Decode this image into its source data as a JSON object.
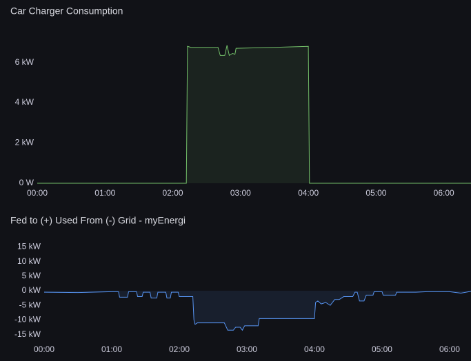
{
  "chart_data": [
    {
      "type": "line",
      "title": "Car Charger Consumption",
      "x": [
        "00:00",
        "02:12",
        "02:13",
        "02:16",
        "02:40",
        "02:42",
        "02:46",
        "02:48",
        "02:50",
        "02:53",
        "02:55",
        "02:56",
        "03:30",
        "04:00",
        "04:01",
        "06:24"
      ],
      "values": [
        0,
        0,
        6.8,
        6.75,
        6.75,
        6.35,
        6.35,
        6.85,
        6.35,
        6.45,
        6.4,
        6.7,
        6.75,
        6.8,
        0,
        0
      ],
      "color": "#73bf69",
      "xlim": [
        "00:00",
        "06:24"
      ],
      "xticks": [
        "00:00",
        "01:00",
        "02:00",
        "03:00",
        "04:00",
        "05:00",
        "06:00"
      ],
      "ylim": [
        0,
        7.8
      ],
      "yticks": [
        {
          "value": 0,
          "label": "0 W"
        },
        {
          "value": 2,
          "label": "2 kW"
        },
        {
          "value": 4,
          "label": "4 kW"
        },
        {
          "value": 6,
          "label": "6 kW"
        }
      ],
      "grid": false
    },
    {
      "type": "line",
      "title": "Fed to (+) Used From (-) Grid - myEnergi",
      "x": [
        "00:00",
        "00:30",
        "01:00",
        "01:06",
        "01:07",
        "01:14",
        "01:15",
        "01:22",
        "01:23",
        "01:27",
        "01:28",
        "01:34",
        "01:35",
        "01:40",
        "01:41",
        "01:48",
        "01:49",
        "01:52",
        "01:53",
        "01:59",
        "02:00",
        "02:12",
        "02:13",
        "02:14",
        "02:16",
        "02:40",
        "02:43",
        "02:48",
        "02:50",
        "02:54",
        "02:56",
        "02:58",
        "03:10",
        "03:11",
        "04:00",
        "04:01",
        "04:03",
        "04:06",
        "04:10",
        "04:14",
        "04:18",
        "04:22",
        "04:26",
        "04:34",
        "04:36",
        "04:38",
        "04:40",
        "04:44",
        "04:46",
        "04:52",
        "04:53",
        "05:00",
        "05:01",
        "05:12",
        "05:13",
        "05:30",
        "05:40",
        "06:00",
        "06:10",
        "06:19"
      ],
      "values": [
        -0.5,
        -0.6,
        -0.3,
        -0.3,
        -2.2,
        -2.2,
        -0.3,
        -0.3,
        -2,
        -2,
        -0.5,
        -0.5,
        -2.5,
        -2.5,
        -0.5,
        -0.5,
        -2.5,
        -2.5,
        -0.5,
        -0.5,
        -2,
        -2,
        -10,
        -11.5,
        -11,
        -11,
        -13.5,
        -13.5,
        -12.5,
        -12.5,
        -13.5,
        -12,
        -12,
        -9.5,
        -9.5,
        -4,
        -3.5,
        -4.5,
        -4,
        -5,
        -3,
        -3,
        -2,
        -2,
        -0.5,
        -0.5,
        -3.5,
        -3.5,
        -1.5,
        -1.5,
        -0.3,
        -0.3,
        -1.5,
        -1.5,
        -0.5,
        -0.5,
        -0.3,
        -0.3,
        -0.8,
        -0.2
      ],
      "color": "#5794f2",
      "xlim": [
        "00:00",
        "06:19"
      ],
      "xticks": [
        "00:00",
        "01:00",
        "02:00",
        "03:00",
        "04:00",
        "05:00",
        "06:00"
      ],
      "ylim": [
        -16.5,
        17
      ],
      "yticks": [
        {
          "value": -15,
          "label": "-15 kW"
        },
        {
          "value": -10,
          "label": "-10 kW"
        },
        {
          "value": -5,
          "label": "-5 kW"
        },
        {
          "value": 0,
          "label": "0 kW"
        },
        {
          "value": 5,
          "label": "5 kW"
        },
        {
          "value": 10,
          "label": "10 kW"
        },
        {
          "value": 15,
          "label": "15 kW"
        }
      ],
      "grid": false
    }
  ]
}
